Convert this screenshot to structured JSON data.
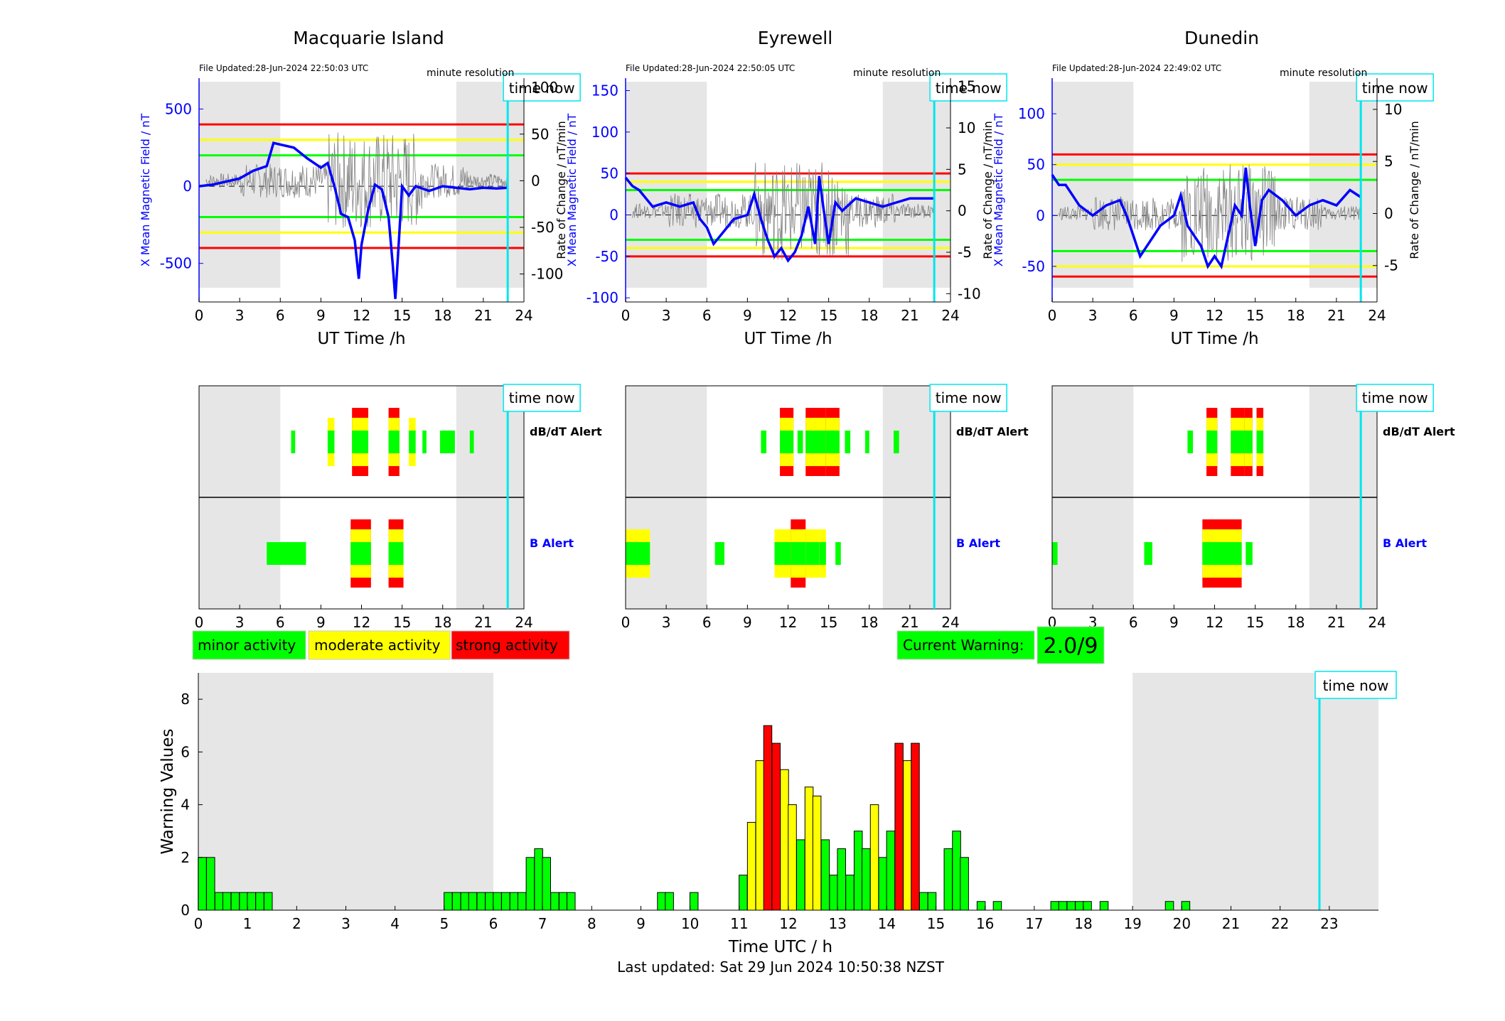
{
  "colors": {
    "blue": "#0000ff",
    "red": "#ff0000",
    "yellow": "#ffff00",
    "green": "#00ff00",
    "cyan": "#00e5ee",
    "shade": "#e6e6e6"
  },
  "stations": [
    {
      "name": "Macquarie Island",
      "file_updated": "File Updated:28-Jun-2024 22:50:03 UTC",
      "resolution": "minute resolution",
      "time_now_label": "time now",
      "left_ylabel": "X Mean Magnetic Field / nT",
      "right_ylabel": "Rate of Change / nT/min",
      "xlabel": "UT Time /h",
      "x_ticks": [
        "0",
        "3",
        "6",
        "9",
        "12",
        "15",
        "18",
        "21",
        "24"
      ],
      "left_ticks": [
        "500",
        "0",
        "-500"
      ],
      "right_ticks": [
        "100",
        "50",
        "0",
        "-50",
        "-100"
      ],
      "time_now_hour": 22.8,
      "dbdt_label": "dB/dT Alert",
      "b_label": "B Alert"
    },
    {
      "name": "Eyrewell",
      "file_updated": "File Updated:28-Jun-2024 22:50:05 UTC",
      "resolution": "minute resolution",
      "time_now_label": "time now",
      "left_ylabel": "X Mean Magnetic Field / nT",
      "right_ylabel": "Rate of Change / nT/min",
      "xlabel": "UT Time /h",
      "x_ticks": [
        "0",
        "3",
        "6",
        "9",
        "12",
        "15",
        "18",
        "21",
        "24"
      ],
      "left_ticks": [
        "150",
        "100",
        "50",
        "0",
        "-50",
        "-100"
      ],
      "right_ticks": [
        "15",
        "10",
        "5",
        "0",
        "-5",
        "-10"
      ],
      "time_now_hour": 22.8,
      "dbdt_label": "dB/dT Alert",
      "b_label": "B Alert"
    },
    {
      "name": "Dunedin",
      "file_updated": "File Updated:28-Jun-2024 22:49:02 UTC",
      "resolution": "minute resolution",
      "time_now_label": "time now",
      "left_ylabel": "X Mean Magnetic Field / nT",
      "right_ylabel": "Rate of Change / nT/min",
      "xlabel": "UT Time /h",
      "x_ticks": [
        "0",
        "3",
        "6",
        "9",
        "12",
        "15",
        "18",
        "21",
        "24"
      ],
      "left_ticks": [
        "100",
        "50",
        "0",
        "-50"
      ],
      "right_ticks": [
        "10",
        "5",
        "0",
        "-5"
      ],
      "time_now_hour": 22.8,
      "dbdt_label": "dB/dT Alert",
      "b_label": "B Alert"
    }
  ],
  "legend": {
    "minor": "minor activity",
    "moderate": "moderate activity",
    "strong": "strong activity"
  },
  "current_warning": {
    "label": "Current Warning:",
    "value": "2.0/9"
  },
  "footer": "Last updated: Sat 29 Jun 2024 10:50:38 NZST",
  "chart_data": [
    {
      "type": "line",
      "station": "Macquarie Island",
      "xlim": [
        0,
        24
      ],
      "ylim_left": [
        -750,
        700
      ],
      "ylim_right": [
        -130,
        110
      ],
      "night_shading_hours": [
        [
          0,
          6
        ],
        [
          19,
          24
        ]
      ],
      "threshold_lines_nT": {
        "red": [
          400,
          -400
        ],
        "yellow": [
          300,
          -300
        ],
        "green": [
          200,
          -200
        ]
      },
      "series": [
        {
          "x": [
            0,
            1,
            2,
            3,
            4,
            5,
            5.5,
            6,
            7,
            8,
            9,
            9.5,
            10,
            10.5,
            11,
            11.5,
            11.8,
            12,
            12.5,
            13,
            13.5,
            14,
            14.3,
            14.5,
            14.8,
            15,
            15.5,
            16,
            17,
            18,
            19,
            20,
            21,
            22,
            22.8
          ],
          "y": [
            0,
            10,
            30,
            50,
            100,
            130,
            280,
            270,
            250,
            180,
            120,
            150,
            0,
            -180,
            -200,
            -350,
            -600,
            -380,
            -150,
            10,
            -20,
            -200,
            -500,
            -730,
            -300,
            0,
            -60,
            0,
            -30,
            0,
            -10,
            -20,
            -10,
            -15,
            -10
          ]
        }
      ]
    },
    {
      "type": "line",
      "station": "Eyrewell",
      "xlim": [
        0,
        24
      ],
      "ylim_left": [
        -105,
        165
      ],
      "ylim_right": [
        -11,
        16
      ],
      "night_shading_hours": [
        [
          0,
          6
        ],
        [
          19,
          24
        ]
      ],
      "threshold_lines_nT": {
        "red": [
          50,
          -50
        ],
        "yellow": [
          40,
          -40
        ],
        "green": [
          30,
          -30
        ]
      },
      "series": [
        {
          "x": [
            0,
            0.5,
            1,
            1.5,
            2,
            3,
            4,
            5,
            5.5,
            6,
            6.5,
            7,
            8,
            9,
            9.5,
            10,
            10.5,
            11,
            11.5,
            12,
            12.5,
            13,
            13.5,
            14,
            14.3,
            14.6,
            15,
            15.5,
            16,
            17,
            18,
            19,
            20,
            21,
            22,
            22.8
          ],
          "y": [
            45,
            35,
            30,
            20,
            10,
            15,
            10,
            15,
            -5,
            -15,
            -35,
            -25,
            -5,
            0,
            25,
            -5,
            -30,
            -50,
            -40,
            -55,
            -45,
            -25,
            10,
            -35,
            47,
            10,
            -35,
            15,
            5,
            20,
            15,
            10,
            15,
            20,
            20,
            20
          ]
        }
      ]
    },
    {
      "type": "line",
      "station": "Dunedin",
      "xlim": [
        0,
        24
      ],
      "ylim_left": [
        -85,
        135
      ],
      "ylim_right": [
        -8.5,
        13
      ],
      "night_shading_hours": [
        [
          0,
          6
        ],
        [
          19,
          24
        ]
      ],
      "threshold_lines_nT": {
        "red": [
          60,
          -60
        ],
        "yellow": [
          50,
          -50
        ],
        "green": [
          35,
          -35
        ]
      },
      "series": [
        {
          "x": [
            0,
            0.5,
            1,
            1.5,
            2,
            3,
            4,
            5,
            5.5,
            6,
            6.5,
            7,
            8,
            9,
            9.5,
            10,
            11,
            11.5,
            12,
            12.5,
            13,
            13.5,
            14,
            14.3,
            14.6,
            15,
            15.5,
            16,
            17,
            18,
            19,
            20,
            21,
            22,
            22.8
          ],
          "y": [
            40,
            30,
            30,
            20,
            10,
            0,
            10,
            15,
            0,
            -20,
            -40,
            -30,
            -10,
            0,
            20,
            -10,
            -30,
            -50,
            -40,
            -50,
            -20,
            10,
            0,
            47,
            10,
            -30,
            15,
            25,
            15,
            0,
            10,
            15,
            10,
            25,
            18
          ]
        }
      ]
    },
    {
      "type": "bar",
      "title": "",
      "xlabel": "Time UTC / h",
      "ylabel": "Warning Values",
      "xlim": [
        0,
        24
      ],
      "ylim": [
        0,
        9
      ],
      "x_ticks": [
        "0",
        "1",
        "2",
        "3",
        "4",
        "5",
        "6",
        "7",
        "8",
        "9",
        "10",
        "11",
        "12",
        "13",
        "14",
        "15",
        "16",
        "17",
        "18",
        "19",
        "20",
        "21",
        "22",
        "23"
      ],
      "y_ticks": [
        "0",
        "2",
        "4",
        "6",
        "8"
      ],
      "night_shading_hours": [
        [
          0,
          6
        ],
        [
          19,
          24
        ]
      ],
      "time_now_hour": 22.8,
      "time_now_label": "time now",
      "bar_width_h": 0.1667,
      "bars": [
        [
          0.08,
          2,
          "g"
        ],
        [
          0.25,
          2,
          "g"
        ],
        [
          0.42,
          0.67,
          "g"
        ],
        [
          0.58,
          0.67,
          "g"
        ],
        [
          0.75,
          0.67,
          "g"
        ],
        [
          0.92,
          0.67,
          "g"
        ],
        [
          1.08,
          0.67,
          "g"
        ],
        [
          1.25,
          0.67,
          "g"
        ],
        [
          1.42,
          0.67,
          "g"
        ],
        [
          5.08,
          0.67,
          "g"
        ],
        [
          5.25,
          0.67,
          "g"
        ],
        [
          5.42,
          0.67,
          "g"
        ],
        [
          5.58,
          0.67,
          "g"
        ],
        [
          5.75,
          0.67,
          "g"
        ],
        [
          5.92,
          0.67,
          "g"
        ],
        [
          6.08,
          0.67,
          "g"
        ],
        [
          6.25,
          0.67,
          "g"
        ],
        [
          6.42,
          0.67,
          "g"
        ],
        [
          6.58,
          0.67,
          "g"
        ],
        [
          6.75,
          2,
          "g"
        ],
        [
          6.92,
          2.33,
          "g"
        ],
        [
          7.08,
          2,
          "g"
        ],
        [
          7.25,
          0.67,
          "g"
        ],
        [
          7.42,
          0.67,
          "g"
        ],
        [
          7.58,
          0.67,
          "g"
        ],
        [
          9.42,
          0.67,
          "g"
        ],
        [
          9.58,
          0.67,
          "g"
        ],
        [
          10.08,
          0.67,
          "g"
        ],
        [
          11.08,
          1.33,
          "g"
        ],
        [
          11.25,
          3.33,
          "y"
        ],
        [
          11.42,
          5.67,
          "y"
        ],
        [
          11.58,
          7,
          "r"
        ],
        [
          11.75,
          6.33,
          "r"
        ],
        [
          11.92,
          5.33,
          "y"
        ],
        [
          12.08,
          4,
          "y"
        ],
        [
          12.25,
          2.67,
          "g"
        ],
        [
          12.42,
          4.67,
          "y"
        ],
        [
          12.58,
          4.33,
          "y"
        ],
        [
          12.75,
          2.67,
          "g"
        ],
        [
          12.92,
          1.33,
          "g"
        ],
        [
          13.08,
          2.33,
          "g"
        ],
        [
          13.25,
          1.33,
          "g"
        ],
        [
          13.42,
          3,
          "g"
        ],
        [
          13.58,
          2.33,
          "g"
        ],
        [
          13.75,
          4,
          "y"
        ],
        [
          13.92,
          2,
          "g"
        ],
        [
          14.08,
          3,
          "g"
        ],
        [
          14.25,
          6.33,
          "r"
        ],
        [
          14.42,
          5.67,
          "y"
        ],
        [
          14.58,
          6.33,
          "r"
        ],
        [
          14.75,
          0.67,
          "g"
        ],
        [
          14.92,
          0.67,
          "g"
        ],
        [
          15.25,
          2.33,
          "g"
        ],
        [
          15.42,
          3,
          "g"
        ],
        [
          15.58,
          2,
          "g"
        ],
        [
          15.92,
          0.33,
          "g"
        ],
        [
          16.25,
          0.33,
          "g"
        ],
        [
          17.42,
          0.33,
          "g"
        ],
        [
          17.58,
          0.33,
          "g"
        ],
        [
          17.75,
          0.33,
          "g"
        ],
        [
          17.92,
          0.33,
          "g"
        ],
        [
          18.08,
          0.33,
          "g"
        ],
        [
          18.42,
          0.33,
          "g"
        ],
        [
          19.75,
          0.33,
          "g"
        ],
        [
          20.08,
          0.33,
          "g"
        ]
      ]
    }
  ]
}
